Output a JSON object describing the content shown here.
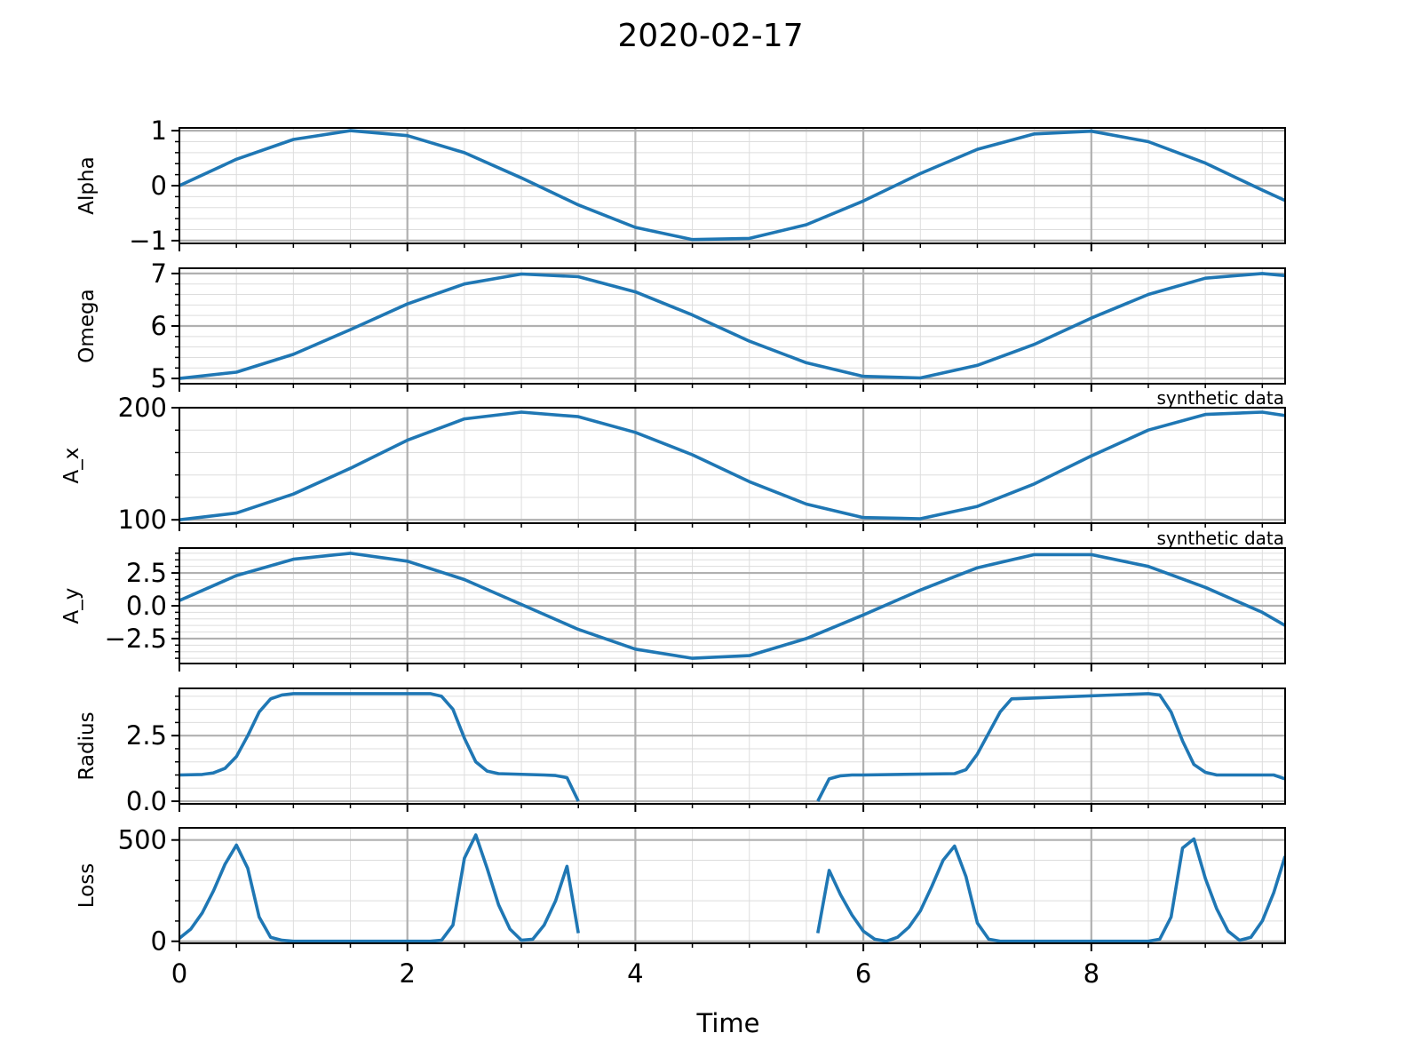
{
  "figure": {
    "title": "2020-02-17"
  },
  "chart_data": [
    {
      "type": "line",
      "ylabel": "Alpha",
      "xlim": [
        0,
        9.7
      ],
      "ylim": [
        -1.05,
        1.05
      ],
      "yticks": [
        -1,
        0,
        1
      ],
      "ytick_labels": [
        "−1",
        "0",
        "1"
      ],
      "minor_yticks": [
        -0.8,
        -0.6,
        -0.4,
        -0.2,
        0.2,
        0.4,
        0.6,
        0.8
      ],
      "annotation": "",
      "series": [
        {
          "color": "#1f77b4",
          "x": [
            0,
            0.5,
            1,
            1.5,
            2,
            2.5,
            3,
            3.5,
            4,
            4.5,
            5,
            5.5,
            6,
            6.5,
            7,
            7.5,
            8,
            8.5,
            9,
            9.5,
            9.7
          ],
          "y": [
            0,
            0.48,
            0.84,
            1.0,
            0.91,
            0.6,
            0.14,
            -0.35,
            -0.76,
            -0.98,
            -0.96,
            -0.71,
            -0.28,
            0.22,
            0.66,
            0.94,
            0.99,
            0.8,
            0.41,
            -0.08,
            -0.27
          ]
        }
      ]
    },
    {
      "type": "line",
      "ylabel": "Omega",
      "xlim": [
        0,
        9.7
      ],
      "ylim": [
        4.9,
        7.1
      ],
      "yticks": [
        5,
        6,
        7
      ],
      "ytick_labels": [
        "5",
        "6",
        "7"
      ],
      "minor_yticks": [
        5.2,
        5.4,
        5.6,
        5.8,
        6.2,
        6.4,
        6.6,
        6.8
      ],
      "annotation": "",
      "series": [
        {
          "color": "#1f77b4",
          "x": [
            0,
            0.5,
            1,
            1.5,
            2,
            2.5,
            3,
            3.5,
            4,
            4.5,
            5,
            5.5,
            6,
            6.5,
            7,
            7.5,
            8,
            8.5,
            9,
            9.5,
            9.7
          ],
          "y": [
            5.0,
            5.12,
            5.46,
            5.93,
            6.42,
            6.8,
            6.99,
            6.94,
            6.65,
            6.21,
            5.71,
            5.3,
            5.04,
            5.01,
            5.25,
            5.65,
            6.15,
            6.6,
            6.91,
            7.0,
            6.96
          ]
        }
      ]
    },
    {
      "type": "line",
      "ylabel": "A_x",
      "xlim": [
        0,
        9.7
      ],
      "ylim": [
        97,
        200
      ],
      "yticks": [
        100,
        200
      ],
      "ytick_labels": [
        "100",
        "200"
      ],
      "minor_yticks": [
        120,
        140,
        160,
        180
      ],
      "annotation": "synthetic data",
      "series": [
        {
          "color": "#1f77b4",
          "x": [
            0,
            0.5,
            1,
            1.5,
            2,
            2.5,
            3,
            3.5,
            4,
            4.5,
            5,
            5.5,
            6,
            6.5,
            7,
            7.5,
            8,
            8.5,
            9,
            9.5,
            9.7
          ],
          "y": [
            100,
            106,
            123,
            146,
            171,
            190,
            196,
            192,
            178,
            158,
            134,
            114,
            102,
            101,
            112,
            132,
            157,
            180,
            194,
            196,
            193
          ]
        }
      ]
    },
    {
      "type": "line",
      "ylabel": "A_y",
      "xlim": [
        0,
        9.7
      ],
      "ylim": [
        -4.4,
        4.4
      ],
      "yticks": [
        -2.5,
        0.0,
        2.5
      ],
      "ytick_labels": [
        "−2.5",
        "0.0",
        "2.5"
      ],
      "minor_yticks": [
        -4,
        -3.5,
        -3,
        -2,
        -1.5,
        -1,
        -0.5,
        0.5,
        1,
        1.5,
        2,
        3,
        3.5,
        4
      ],
      "annotation": "synthetic data",
      "series": [
        {
          "color": "#1f77b4",
          "x": [
            0,
            0.5,
            1,
            1.5,
            2,
            2.5,
            3,
            3.5,
            4,
            4.5,
            5,
            5.5,
            6,
            6.5,
            7,
            7.5,
            8,
            8.5,
            9,
            9.5,
            9.7
          ],
          "y": [
            0.4,
            2.3,
            3.55,
            4.0,
            3.4,
            2.0,
            0.1,
            -1.8,
            -3.3,
            -4.0,
            -3.8,
            -2.5,
            -0.7,
            1.2,
            2.9,
            3.9,
            3.9,
            3.0,
            1.4,
            -0.5,
            -1.5
          ]
        }
      ]
    },
    {
      "type": "line",
      "ylabel": "Radius",
      "xlim": [
        0,
        9.7
      ],
      "ylim": [
        -0.1,
        4.3
      ],
      "yticks": [
        0.0,
        2.5
      ],
      "ytick_labels": [
        "0.0",
        "2.5"
      ],
      "minor_yticks": [
        0.5,
        1,
        1.5,
        2,
        3,
        3.5,
        4
      ],
      "annotation": "",
      "series": [
        {
          "color": "#1f77b4",
          "x": [
            0,
            0.2,
            0.3,
            0.4,
            0.5,
            0.6,
            0.7,
            0.8,
            0.9,
            1.0,
            2.2,
            2.3,
            2.4,
            2.5,
            2.6,
            2.7,
            2.8,
            3.2,
            3.3,
            3.4,
            3.5
          ],
          "y": [
            1.0,
            1.02,
            1.08,
            1.25,
            1.7,
            2.5,
            3.4,
            3.9,
            4.05,
            4.1,
            4.1,
            4.0,
            3.5,
            2.4,
            1.5,
            1.15,
            1.05,
            1.0,
            0.98,
            0.9,
            0.0
          ]
        },
        {
          "color": "#1f77b4",
          "x": [
            5.6,
            5.7,
            5.8,
            5.9,
            6.0,
            6.8,
            6.9,
            7.0,
            7.1,
            7.2,
            7.3,
            8.5,
            8.6,
            8.7,
            8.8,
            8.9,
            9.0,
            9.1,
            9.6,
            9.7
          ],
          "y": [
            0.0,
            0.85,
            0.97,
            1.0,
            1.0,
            1.05,
            1.2,
            1.8,
            2.6,
            3.4,
            3.9,
            4.1,
            4.05,
            3.4,
            2.3,
            1.4,
            1.1,
            1.0,
            1.0,
            0.85
          ]
        }
      ]
    },
    {
      "type": "line",
      "ylabel": "Loss",
      "xlim": [
        0,
        9.7
      ],
      "ylim": [
        -10,
        560
      ],
      "yticks": [
        0,
        500
      ],
      "ytick_labels": [
        "0",
        "500"
      ],
      "minor_yticks": [
        100,
        200,
        300,
        400
      ],
      "annotation": "",
      "series": [
        {
          "color": "#1f77b4",
          "x": [
            0,
            0.1,
            0.2,
            0.3,
            0.4,
            0.5,
            0.6,
            0.7,
            0.8,
            0.9,
            1.0,
            2.2,
            2.3,
            2.4,
            2.5,
            2.6,
            2.7,
            2.8,
            2.9,
            3.0,
            3.1,
            3.2,
            3.3,
            3.4,
            3.5
          ],
          "y": [
            15,
            60,
            140,
            250,
            380,
            475,
            360,
            120,
            20,
            5,
            0,
            0,
            5,
            80,
            410,
            525,
            360,
            180,
            60,
            5,
            10,
            80,
            200,
            370,
            40
          ]
        },
        {
          "color": "#1f77b4",
          "x": [
            5.6,
            5.7,
            5.8,
            5.9,
            6.0,
            6.1,
            6.2,
            6.3,
            6.4,
            6.5,
            6.6,
            6.7,
            6.8,
            6.9,
            7.0,
            7.1,
            7.2,
            8.5,
            8.6,
            8.7,
            8.8,
            8.9,
            9.0,
            9.1,
            9.2,
            9.3,
            9.4,
            9.5,
            9.6,
            9.7
          ],
          "y": [
            40,
            350,
            230,
            130,
            50,
            10,
            0,
            20,
            70,
            150,
            270,
            400,
            470,
            320,
            90,
            10,
            0,
            0,
            10,
            120,
            460,
            505,
            310,
            160,
            50,
            5,
            20,
            100,
            240,
            420
          ]
        }
      ]
    }
  ],
  "x_axis": {
    "label": "Time",
    "ticks": [
      0,
      2,
      4,
      6,
      8
    ],
    "tick_labels": [
      "0",
      "2",
      "4",
      "6",
      "8"
    ],
    "minor_ticks": [
      0.5,
      1,
      1.5,
      2.5,
      3,
      3.5,
      4.5,
      5,
      5.5,
      6.5,
      7,
      7.5,
      8.5,
      9,
      9.5
    ],
    "grid": true
  },
  "style": {
    "line_color": "#1f77b4",
    "major_grid_color": "#b0b0b0",
    "minor_grid_color": "#dddddd",
    "axes_color": "#000000"
  }
}
